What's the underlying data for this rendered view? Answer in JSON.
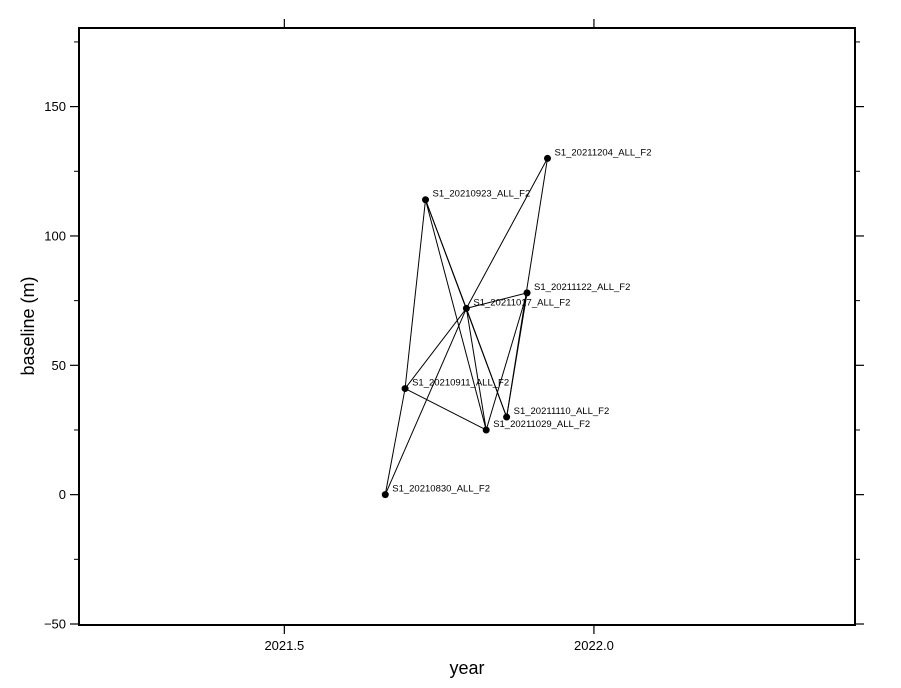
{
  "chart_data": {
    "type": "scatter",
    "title": "",
    "xlabel": "year",
    "ylabel": "baseline (m)",
    "xlim": [
      2021.17,
      2022.42
    ],
    "ylim": [
      -50,
      180
    ],
    "x_ticks": [
      {
        "value": 2021.5,
        "label": "2021.5"
      },
      {
        "value": 2022.0,
        "label": "2022.0"
      }
    ],
    "y_ticks": [
      {
        "value": -50,
        "label": "−50"
      },
      {
        "value": 0,
        "label": "0"
      },
      {
        "value": 50,
        "label": "50"
      },
      {
        "value": 100,
        "label": "100"
      },
      {
        "value": 150,
        "label": "150"
      }
    ],
    "points": [
      {
        "id": "S1_20210830_ALL_F2",
        "x": 2021.663,
        "y": 0
      },
      {
        "id": "S1_20210911_ALL_F2",
        "x": 2021.695,
        "y": 41
      },
      {
        "id": "S1_20210923_ALL_F2",
        "x": 2021.728,
        "y": 114
      },
      {
        "id": "S1_20211017_ALL_F2",
        "x": 2021.794,
        "y": 72
      },
      {
        "id": "S1_20211029_ALL_F2",
        "x": 2021.826,
        "y": 25
      },
      {
        "id": "S1_20211110_ALL_F2",
        "x": 2021.859,
        "y": 30
      },
      {
        "id": "S1_20211122_ALL_F2",
        "x": 2021.892,
        "y": 78
      },
      {
        "id": "S1_20211204_ALL_F2",
        "x": 2021.925,
        "y": 130
      }
    ],
    "labels": [
      "S1_20210830_ALL_F2",
      "S1_20210911_ALL_F2",
      "S1_20210923_ALL_F2",
      "S1_20211017_ALL_F2",
      "S1_20211029_ALL_F2",
      "S1_20211110_ALL_F2",
      "S1_20211122_ALL_F2",
      "S1_20211204_ALL_F2"
    ],
    "edges": [
      [
        0,
        1
      ],
      [
        0,
        3
      ],
      [
        1,
        2
      ],
      [
        1,
        3
      ],
      [
        1,
        4
      ],
      [
        2,
        3
      ],
      [
        2,
        4
      ],
      [
        2,
        5
      ],
      [
        3,
        4
      ],
      [
        3,
        5
      ],
      [
        3,
        6
      ],
      [
        3,
        7
      ],
      [
        4,
        6
      ],
      [
        5,
        6
      ],
      [
        5,
        7
      ]
    ],
    "grid": false,
    "legend": false
  }
}
